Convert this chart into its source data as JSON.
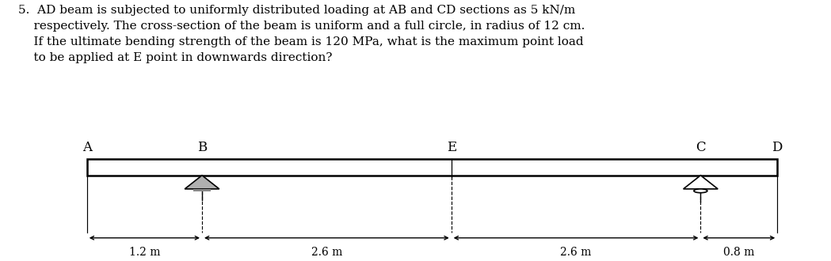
{
  "line1": "5.  AD beam is subjected to uniformly distributed loading at AB and CD sections as 5 kN/m",
  "line2": "    respectively. The cross-section of the beam is uniform and a full circle, in radius of 12 cm.",
  "line3": "    If the ultimate bending strength of the beam is 120 MPa, what is the maximum point load",
  "line4": "    to be applied at E point in downwards direction?",
  "title_fontsize": 11.0,
  "labels": [
    "A",
    "B",
    "E",
    "C",
    "D"
  ],
  "distances": [
    1.2,
    2.6,
    2.6,
    0.8
  ],
  "dist_labels": [
    "1.2 m",
    "2.6 m",
    "2.6 m",
    "0.8 m"
  ],
  "beam_color": "#000000",
  "background": "#ffffff",
  "label_fontsize": 12,
  "dim_fontsize": 10
}
